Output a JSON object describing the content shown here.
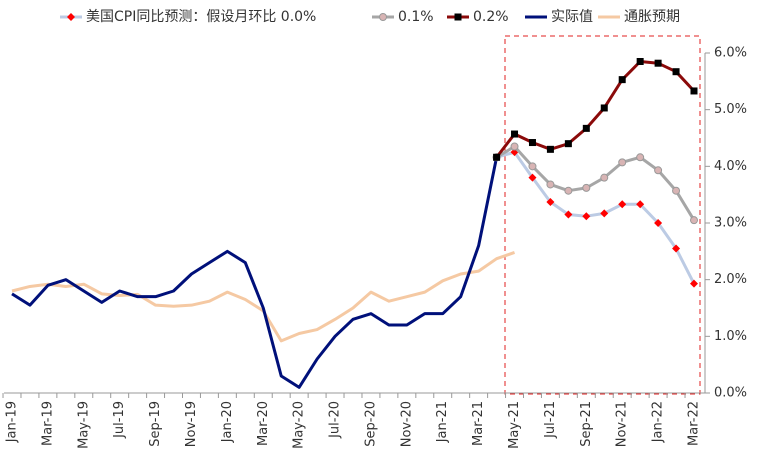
{
  "chart_data": {
    "type": "line",
    "categories": [
      "Jan-19",
      null,
      "Mar-19",
      null,
      "May-19",
      null,
      "Jul-19",
      null,
      "Sep-19",
      null,
      "Nov-19",
      null,
      "Jan-20",
      null,
      "Mar-20",
      null,
      "May-20",
      null,
      "Jul-20",
      null,
      "Sep-20",
      null,
      "Nov-20",
      null,
      "Jan-21",
      null,
      "Mar-21",
      null,
      "May-21",
      null,
      "Jul-21",
      null,
      "Sep-21",
      null,
      "Nov-21",
      null,
      "Jan-22",
      null,
      "Mar-22"
    ],
    "series": [
      {
        "name": "美国CPI同比预测：假设月环比 0.0%",
        "color": "#bccbe4",
        "marker": "diamond",
        "marker_color": "#ff0000",
        "values": [
          null,
          null,
          null,
          null,
          null,
          null,
          null,
          null,
          null,
          null,
          null,
          null,
          null,
          null,
          null,
          null,
          null,
          null,
          null,
          null,
          null,
          null,
          null,
          null,
          null,
          null,
          null,
          4.16,
          4.25,
          3.8,
          3.37,
          3.15,
          3.12,
          3.17,
          3.33,
          3.33,
          3.0,
          2.55,
          1.93
        ]
      },
      {
        "name": "0.1%",
        "color": "#a6a6a6",
        "marker": "circle",
        "marker_color": "#d8b4b4",
        "values": [
          null,
          null,
          null,
          null,
          null,
          null,
          null,
          null,
          null,
          null,
          null,
          null,
          null,
          null,
          null,
          null,
          null,
          null,
          null,
          null,
          null,
          null,
          null,
          null,
          null,
          null,
          null,
          4.16,
          4.35,
          4.0,
          3.68,
          3.57,
          3.62,
          3.8,
          4.07,
          4.16,
          3.93,
          3.57,
          3.05
        ]
      },
      {
        "name": "0.2%",
        "color": "#8b0a0a",
        "marker": "square",
        "marker_color": "#000000",
        "values": [
          null,
          null,
          null,
          null,
          null,
          null,
          null,
          null,
          null,
          null,
          null,
          null,
          null,
          null,
          null,
          null,
          null,
          null,
          null,
          null,
          null,
          null,
          null,
          null,
          null,
          null,
          null,
          4.16,
          4.57,
          4.42,
          4.3,
          4.4,
          4.67,
          5.03,
          5.53,
          5.85,
          5.82,
          5.67,
          5.33
        ]
      },
      {
        "name": "实际值",
        "color": "#00107a",
        "values": [
          1.75,
          1.55,
          1.9,
          2.0,
          1.8,
          1.6,
          1.8,
          1.7,
          1.7,
          1.8,
          2.1,
          2.3,
          2.5,
          2.3,
          1.5,
          0.3,
          0.1,
          0.6,
          1.0,
          1.3,
          1.4,
          1.2,
          1.2,
          1.4,
          1.4,
          1.7,
          2.6,
          4.16,
          null,
          null,
          null,
          null,
          null,
          null,
          null,
          null,
          null,
          null,
          null
        ]
      },
      {
        "name": "通胀预期",
        "color": "#f5c9a3",
        "values": [
          1.8,
          1.88,
          1.92,
          1.88,
          1.92,
          1.75,
          1.72,
          1.74,
          1.55,
          1.53,
          1.55,
          1.62,
          1.78,
          1.65,
          1.45,
          0.92,
          1.05,
          1.12,
          1.3,
          1.5,
          1.78,
          1.62,
          1.7,
          1.78,
          1.98,
          2.1,
          2.15,
          2.37,
          2.48,
          null,
          null,
          null,
          null,
          null,
          null,
          null,
          null,
          null,
          null
        ]
      }
    ],
    "ylim": [
      0,
      6
    ],
    "yticks": [
      {
        "value": 0,
        "label": "0.0%"
      },
      {
        "value": 1,
        "label": "1.0%"
      },
      {
        "value": 2,
        "label": "2.0%"
      },
      {
        "value": 3,
        "label": "3.0%"
      },
      {
        "value": 4,
        "label": "4.0%"
      },
      {
        "value": 5,
        "label": "5.0%"
      },
      {
        "value": 6,
        "label": "6.0%"
      }
    ],
    "grid": false,
    "legend": "top"
  }
}
